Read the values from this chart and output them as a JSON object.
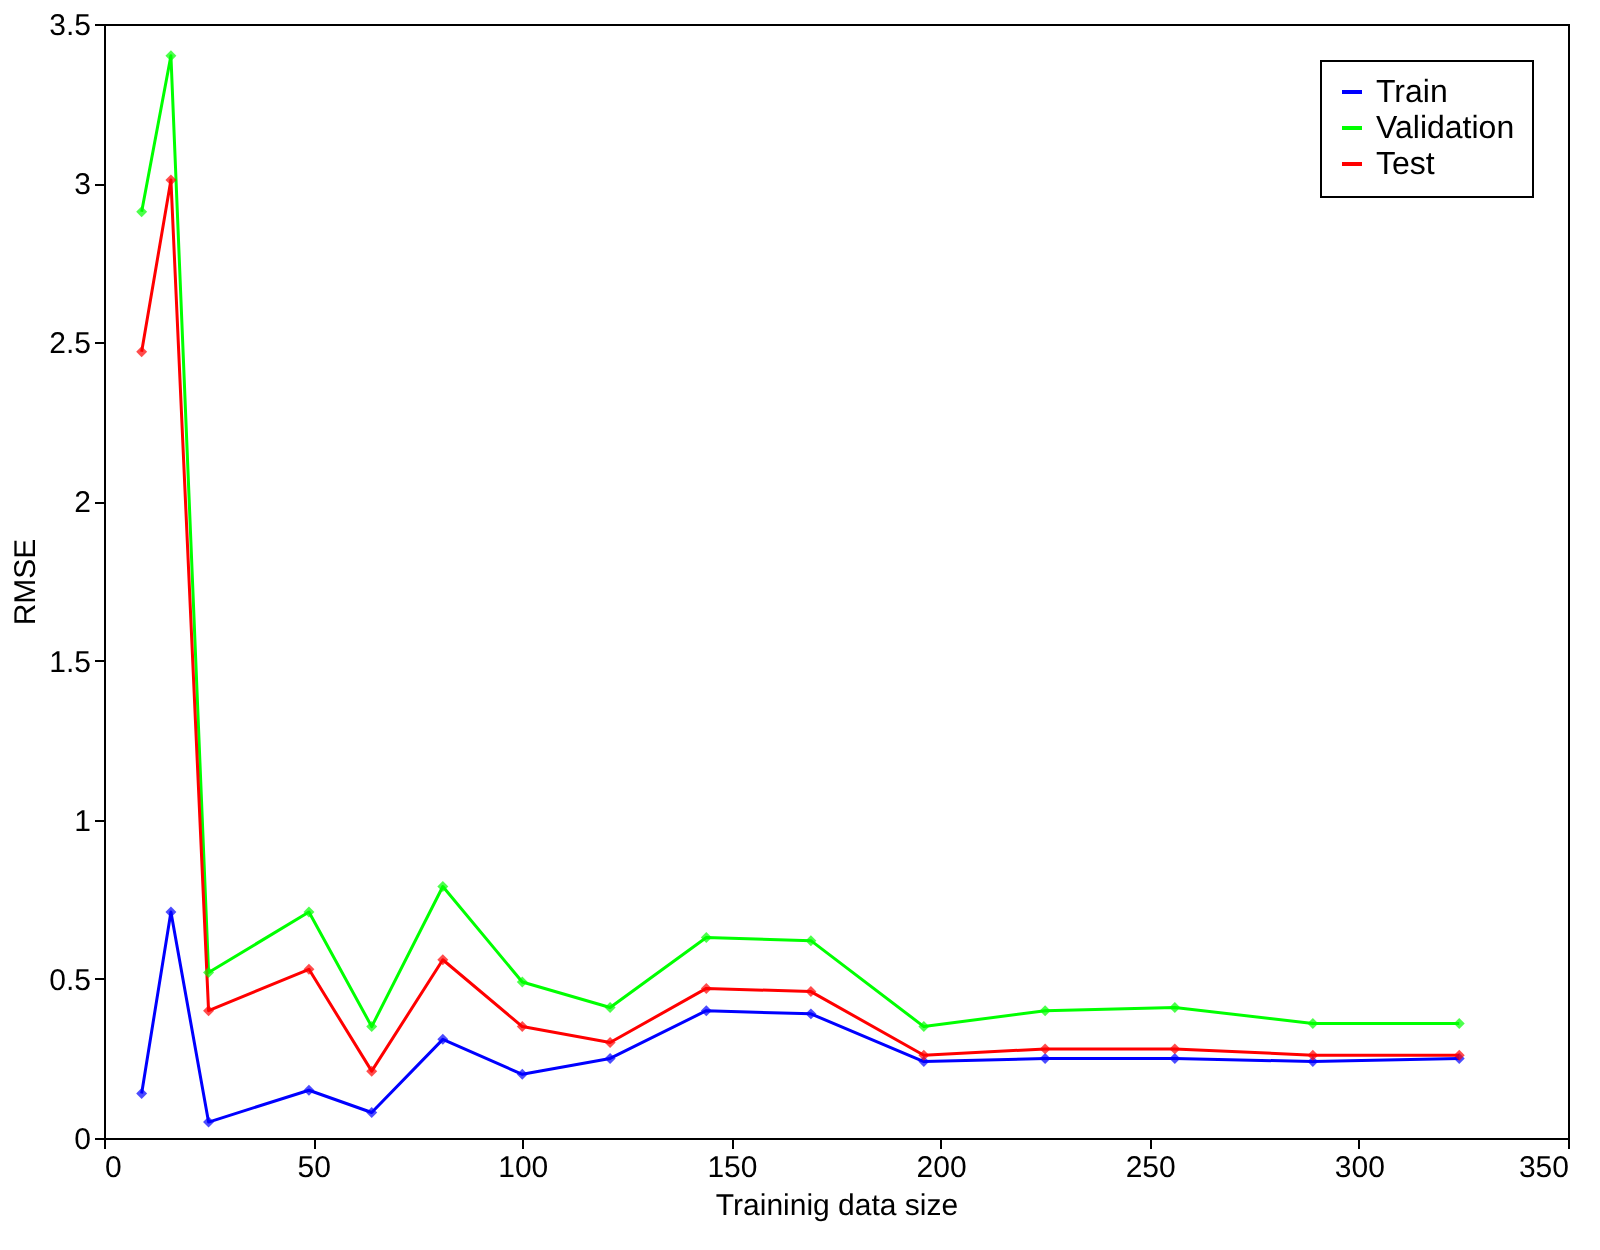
{
  "chart_data": {
    "type": "line",
    "xlabel": "Traininig data size",
    "ylabel": "RMSE",
    "x": [
      9,
      16,
      25,
      49,
      64,
      81,
      100,
      121,
      144,
      169,
      196,
      225,
      256,
      289,
      324
    ],
    "series": [
      {
        "name": "Train",
        "color": "#0000ff",
        "values": [
          0.14,
          0.71,
          0.05,
          0.15,
          0.08,
          0.31,
          0.2,
          0.25,
          0.4,
          0.39,
          0.24,
          0.25,
          0.25,
          0.24,
          0.25
        ]
      },
      {
        "name": "Validation",
        "color": "#00ff00",
        "values": [
          2.91,
          3.4,
          0.52,
          0.71,
          0.35,
          0.79,
          0.49,
          0.41,
          0.63,
          0.62,
          0.35,
          0.4,
          0.41,
          0.36,
          0.36
        ]
      },
      {
        "name": "Test",
        "color": "#ff0000",
        "values": [
          2.47,
          3.01,
          0.4,
          0.53,
          0.21,
          0.56,
          0.35,
          0.3,
          0.47,
          0.46,
          0.26,
          0.28,
          0.28,
          0.26,
          0.26
        ]
      }
    ],
    "xlim": [
      0,
      350
    ],
    "xticks": [
      0,
      50,
      100,
      150,
      200,
      250,
      300,
      350
    ],
    "ylim": [
      0,
      3.5
    ],
    "yticks": [
      0,
      0.5,
      1,
      1.5,
      2,
      2.5,
      3,
      3.5
    ],
    "grid": false,
    "legend": "top right",
    "marker": "diamond",
    "line_style": "solid"
  }
}
